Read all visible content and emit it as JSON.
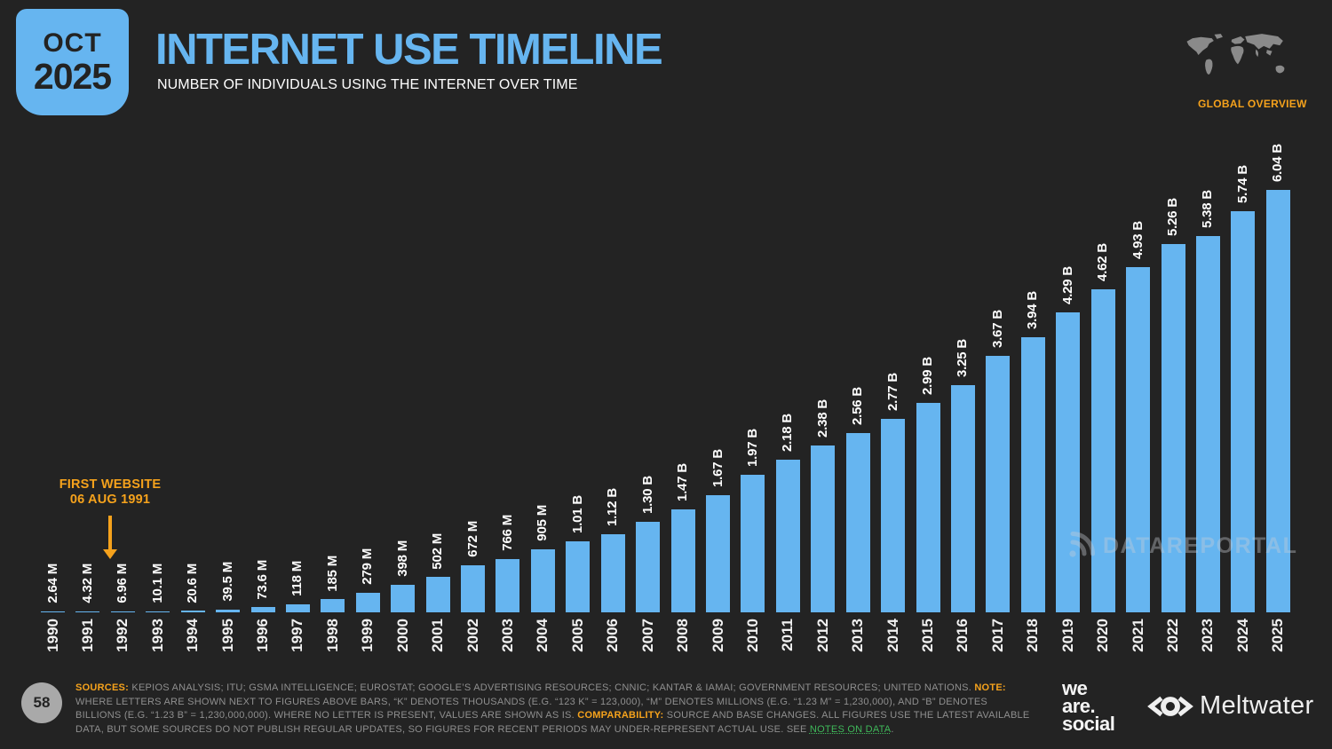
{
  "header": {
    "date_badge": {
      "month": "OCT",
      "year": "2025"
    },
    "title": "INTERNET USE TIMELINE",
    "subtitle": "NUMBER OF INDIVIDUALS USING THE INTERNET OVER TIME",
    "overview_label": "GLOBAL OVERVIEW"
  },
  "annotation": {
    "line1": "FIRST WEBSITE",
    "line2": "06 AUG 1991"
  },
  "watermark": {
    "text": "DATAREPORTAL"
  },
  "chart_data": {
    "type": "bar",
    "title": "INTERNET USE TIMELINE",
    "subtitle": "NUMBER OF INDIVIDUALS USING THE INTERNET OVER TIME",
    "unit": "individuals using the internet",
    "categories": [
      "1990",
      "1991",
      "1992",
      "1993",
      "1994",
      "1995",
      "1996",
      "1997",
      "1998",
      "1999",
      "2000",
      "2001",
      "2002",
      "2003",
      "2004",
      "2005",
      "2006",
      "2007",
      "2008",
      "2009",
      "2010",
      "2011",
      "2012",
      "2013",
      "2014",
      "2015",
      "2016",
      "2017",
      "2018",
      "2019",
      "2020",
      "2021",
      "2022",
      "2023",
      "2024",
      "2025"
    ],
    "value_labels": [
      "2.64 M",
      "4.32 M",
      "6.96 M",
      "10.1 M",
      "20.6 M",
      "39.5 M",
      "73.6 M",
      "118 M",
      "185 M",
      "279 M",
      "398 M",
      "502 M",
      "672 M",
      "766 M",
      "905 M",
      "1.01 B",
      "1.12 B",
      "1.30 B",
      "1.47 B",
      "1.67 B",
      "1.97 B",
      "2.18 B",
      "2.38 B",
      "2.56 B",
      "2.77 B",
      "2.99 B",
      "3.25 B",
      "3.67 B",
      "3.94 B",
      "4.29 B",
      "4.62 B",
      "4.93 B",
      "5.26 B",
      "5.38 B",
      "5.74 B",
      "6.04 B"
    ],
    "values_billions": [
      0.00264,
      0.00432,
      0.00696,
      0.0101,
      0.0206,
      0.0395,
      0.0736,
      0.118,
      0.185,
      0.279,
      0.398,
      0.502,
      0.672,
      0.766,
      0.905,
      1.01,
      1.12,
      1.3,
      1.47,
      1.67,
      1.97,
      2.18,
      2.38,
      2.56,
      2.77,
      2.99,
      3.25,
      3.67,
      3.94,
      4.29,
      4.62,
      4.93,
      5.26,
      5.38,
      5.74,
      6.04
    ],
    "ylim": [
      0,
      6.04
    ],
    "grid": false,
    "legend": "none",
    "bar_color": "#66B5F0",
    "annotation": "FIRST WEBSITE 06 AUG 1991"
  },
  "footer": {
    "page_number": "58",
    "sources_label": "SOURCES:",
    "sources_text": "KEPIOS ANALYSIS; ITU; GSMA INTELLIGENCE; EUROSTAT; GOOGLE’S ADVERTISING RESOURCES; CNNIC; KANTAR & IAMAI; GOVERNMENT RESOURCES; UNITED NATIONS.",
    "note_label": "NOTE:",
    "note_text": "WHERE LETTERS ARE SHOWN NEXT TO FIGURES ABOVE BARS, “K” DENOTES THOUSANDS (E.G. “123 K” = 123,000), “M” DENOTES MILLIONS (E.G. “1.23 M” = 1,230,000), AND “B” DENOTES BILLIONS (E.G. “1.23 B” = 1,230,000,000). WHERE NO LETTER IS PRESENT, VALUES ARE SHOWN AS IS.",
    "comparability_label": "COMPARABILITY:",
    "comparability_text": "SOURCE AND BASE CHANGES. ALL FIGURES USE THE LATEST AVAILABLE DATA, BUT SOME SOURCES DO NOT PUBLISH REGULAR UPDATES, SO FIGURES FOR RECENT PERIODS MAY UNDER-REPRESENT ACTUAL USE. SEE",
    "notes_link": "NOTES ON DATA",
    "after_link": ".",
    "wearesocial": {
      "line1": "we",
      "line2": "are.",
      "line3": "social"
    },
    "meltwater": "Meltwater"
  },
  "colors": {
    "background": "#232323",
    "accent_blue": "#66B5F0",
    "accent_orange": "#F5A21C",
    "link_green": "#3FB95A",
    "body_gray": "#8F8F8F"
  }
}
